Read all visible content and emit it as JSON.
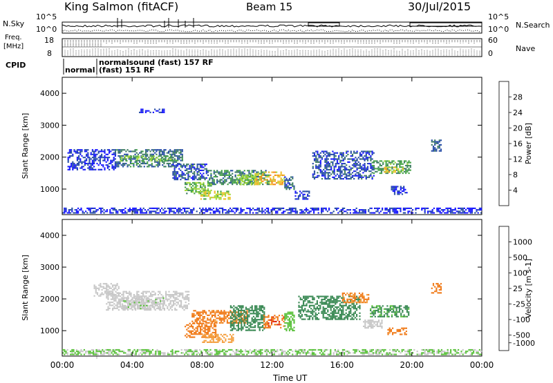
{
  "header": {
    "radar": "King Salmon (fitACF)",
    "beam": "Beam 15",
    "date": "30/Jul/2015"
  },
  "strips": {
    "nsky_label": "N.Sky",
    "nsky_ticks": [
      "10^5",
      "10^0"
    ],
    "nsearch_label": "N.Search",
    "nsearch_ticks": [
      "10^5",
      "10^0"
    ],
    "freq_label_1": "Freq.",
    "freq_label_2": "[MHz]",
    "freq_ticks": [
      "18",
      "8"
    ],
    "nave_label": "Nave",
    "nave_ticks": [
      "60",
      "0"
    ],
    "cpid_label": "CPID",
    "cpid_modes": [
      "normal",
      "normalsound (fast) 157 RF",
      "(fast) 151 RF"
    ]
  },
  "x_axis": {
    "label": "Time UT",
    "ticks": [
      "00:00",
      "04:00",
      "08:00",
      "12:00",
      "16:00",
      "20:00",
      "00:00"
    ]
  },
  "colors": {
    "power": [
      "#1a1aff",
      "#2a4fa8",
      "#3f7d64",
      "#49a54a",
      "#a3d93b",
      "#f0c030",
      "#f58a1c",
      "#e02020"
    ],
    "velocity": [
      "#1c2fb8",
      "#2a5f9e",
      "#3b8a55",
      "#5cc23e",
      "#c8c8c8",
      "#f4a040",
      "#f07a18",
      "#e02a10"
    ]
  },
  "chart_data": [
    {
      "type": "heatmap",
      "title": "Power",
      "xlabel": "Time UT",
      "ylabel": "Slant Range [km]",
      "y_ticks": [
        "1000",
        "2000",
        "3000",
        "4000"
      ],
      "ylim": [
        200,
        4500
      ],
      "colorbar_label": "Power [dB]",
      "colorbar_ticks": [
        "4",
        "8",
        "12",
        "16",
        "20",
        "24",
        "28"
      ],
      "regions": [
        {
          "t": [
            4.3,
            5.8
          ],
          "r": [
            3380,
            3520
          ],
          "v": 5
        },
        {
          "t": [
            0.3,
            3.0
          ],
          "r": [
            1600,
            2250
          ],
          "v": 6
        },
        {
          "t": [
            3.0,
            6.9
          ],
          "r": [
            1700,
            2250
          ],
          "v": 11
        },
        {
          "t": [
            3.3,
            6.3
          ],
          "r": [
            1900,
            2050
          ],
          "v": 17
        },
        {
          "t": [
            6.3,
            8.3
          ],
          "r": [
            1300,
            1800
          ],
          "v": 8
        },
        {
          "t": [
            8.3,
            11.8
          ],
          "r": [
            1150,
            1600
          ],
          "v": 13
        },
        {
          "t": [
            7.0,
            8.5
          ],
          "r": [
            880,
            1220
          ],
          "v": 17
        },
        {
          "t": [
            7.9,
            9.6
          ],
          "r": [
            700,
            950
          ],
          "v": 21
        },
        {
          "t": [
            10.0,
            11.0
          ],
          "r": [
            1150,
            1450
          ],
          "v": 18
        },
        {
          "t": [
            11.0,
            12.7
          ],
          "r": [
            1150,
            1550
          ],
          "v": 24
        },
        {
          "t": [
            12.7,
            13.3
          ],
          "r": [
            1000,
            1400
          ],
          "v": 9
        },
        {
          "t": [
            13.3,
            14.1
          ],
          "r": [
            700,
            950
          ],
          "v": 6
        },
        {
          "t": [
            14.3,
            17.8
          ],
          "r": [
            1300,
            2200
          ],
          "v": 8
        },
        {
          "t": [
            17.7,
            19.9
          ],
          "r": [
            1500,
            1900
          ],
          "v": 15
        },
        {
          "t": [
            18.4,
            19.5
          ],
          "r": [
            1550,
            1700
          ],
          "v": 23
        },
        {
          "t": [
            18.8,
            19.7
          ],
          "r": [
            850,
            1100
          ],
          "v": 6
        },
        {
          "t": [
            21.1,
            21.7
          ],
          "r": [
            2200,
            2550
          ],
          "v": 10
        },
        {
          "t": [
            0.0,
            24.0
          ],
          "r": [
            250,
            420
          ],
          "v": 5
        }
      ]
    },
    {
      "type": "heatmap",
      "title": "Velocity",
      "xlabel": "Time UT",
      "ylabel": "Slant Range [km]",
      "y_ticks": [
        "1000",
        "2000",
        "3000",
        "4000"
      ],
      "ylim": [
        200,
        4500
      ],
      "colorbar_label": "Velocity [m s-1]",
      "colorbar_ticks": [
        "1000",
        "500",
        "100",
        "25",
        "-25",
        "-100",
        "-500",
        "-1000"
      ],
      "regions": [
        {
          "t": [
            2.5,
            7.2
          ],
          "r": [
            1650,
            2250
          ],
          "v": 0
        },
        {
          "t": [
            3.4,
            5.8
          ],
          "r": [
            1700,
            2050
          ],
          "v": 10
        },
        {
          "t": [
            1.8,
            3.2
          ],
          "r": [
            2100,
            2500
          ],
          "v": 0
        },
        {
          "t": [
            7.0,
            8.8
          ],
          "r": [
            800,
            1250
          ],
          "v": -200
        },
        {
          "t": [
            8.0,
            9.8
          ],
          "r": [
            650,
            900
          ],
          "v": -50
        },
        {
          "t": [
            7.4,
            10.6
          ],
          "r": [
            1250,
            1650
          ],
          "v": -150
        },
        {
          "t": [
            9.6,
            11.6
          ],
          "r": [
            1000,
            1800
          ],
          "v": 180
        },
        {
          "t": [
            11.5,
            12.7
          ],
          "r": [
            1100,
            1500
          ],
          "v": -400
        },
        {
          "t": [
            12.7,
            13.3
          ],
          "r": [
            1000,
            1600
          ],
          "v": 60
        },
        {
          "t": [
            13.5,
            17.0
          ],
          "r": [
            1350,
            2100
          ],
          "v": 250
        },
        {
          "t": [
            16.0,
            17.5
          ],
          "r": [
            1900,
            2200
          ],
          "v": -120
        },
        {
          "t": [
            17.6,
            19.8
          ],
          "r": [
            1450,
            1800
          ],
          "v": 120
        },
        {
          "t": [
            17.2,
            18.3
          ],
          "r": [
            1100,
            1350
          ],
          "v": 0
        },
        {
          "t": [
            18.6,
            19.7
          ],
          "r": [
            900,
            1100
          ],
          "v": -150
        },
        {
          "t": [
            21.1,
            21.7
          ],
          "r": [
            2200,
            2500
          ],
          "v": -300
        },
        {
          "t": [
            0.0,
            24.0
          ],
          "r": [
            250,
            420
          ],
          "v": 30
        }
      ]
    }
  ]
}
